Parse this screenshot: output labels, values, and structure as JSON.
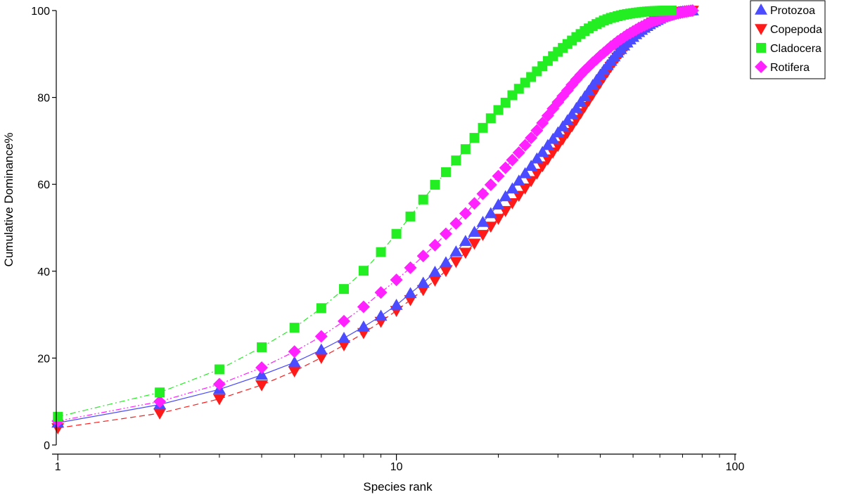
{
  "chart_data": {
    "type": "scatter",
    "xlabel": "Species rank",
    "ylabel": "Cumulative Dominance%",
    "xscale": "log",
    "xlim": [
      0.98,
      100
    ],
    "ylim": [
      0,
      100
    ],
    "xticks": [
      1,
      10,
      100
    ],
    "yticks": [
      0,
      20,
      40,
      60,
      80,
      100
    ],
    "grid": false,
    "legend_position": "top-right",
    "series": [
      {
        "name": "Protozoa",
        "color": "#4b4bff",
        "marker": "triangle-up",
        "line_style": "solid",
        "x": [
          1,
          2,
          3,
          4,
          5,
          6,
          7,
          8,
          9,
          10,
          11,
          12,
          13,
          14,
          15,
          16,
          17,
          18,
          19,
          20,
          21,
          22,
          23,
          24,
          25,
          26,
          27,
          28,
          29,
          30,
          31,
          32,
          33,
          34,
          35,
          36,
          37,
          38,
          39,
          40,
          41,
          42,
          43,
          44,
          45,
          46,
          47,
          48,
          49,
          50,
          51,
          52,
          53,
          54,
          55,
          56,
          57,
          58,
          59,
          60,
          61,
          62,
          63,
          64,
          65,
          66,
          67,
          68,
          69,
          70,
          71,
          72,
          73,
          74,
          75
        ],
        "y": [
          5.1,
          9.3,
          12.8,
          16.1,
          19.0,
          21.9,
          24.6,
          27.2,
          29.7,
          32.2,
          34.9,
          37.3,
          39.8,
          42.0,
          44.5,
          46.9,
          49.0,
          51.3,
          53.3,
          55.3,
          57.2,
          59.0,
          60.8,
          62.5,
          64.2,
          65.9,
          67.4,
          69.0,
          70.4,
          71.9,
          73.3,
          74.7,
          76.1,
          77.5,
          78.9,
          80.2,
          81.5,
          82.8,
          84.0,
          85.2,
          86.3,
          87.4,
          88.4,
          89.4,
          90.3,
          91.1,
          91.9,
          92.6,
          93.3,
          93.9,
          94.5,
          95.0,
          95.5,
          96.0,
          96.4,
          96.8,
          97.2,
          97.5,
          97.8,
          98.1,
          98.4,
          98.6,
          98.8,
          99.0,
          99.2,
          99.3,
          99.4,
          99.55,
          99.65,
          99.75,
          99.82,
          99.88,
          99.93,
          99.97,
          100
        ]
      },
      {
        "name": "Copepoda",
        "color": "#ff1a1a",
        "marker": "triangle-down",
        "line_style": "dashed",
        "x": [
          1,
          2,
          3,
          4,
          5,
          6,
          7,
          8,
          9,
          10,
          11,
          12,
          13,
          14,
          15,
          16,
          17,
          18,
          19,
          20,
          21,
          22,
          23,
          24,
          25,
          26,
          27,
          28,
          29,
          30,
          31,
          32,
          33,
          34,
          35,
          36,
          37,
          38,
          39,
          40,
          41,
          42,
          43,
          44,
          45,
          46,
          47,
          48,
          49,
          50,
          51,
          52,
          53,
          54,
          55,
          56,
          57,
          58,
          59,
          60,
          61,
          62,
          63,
          64,
          65,
          66,
          67,
          68,
          69,
          70,
          71,
          72,
          73,
          74,
          75
        ],
        "y": [
          3.9,
          7.3,
          10.6,
          13.8,
          17.0,
          20.1,
          23.0,
          25.8,
          28.4,
          30.9,
          33.4,
          35.7,
          37.9,
          40.1,
          42.2,
          44.3,
          46.4,
          48.4,
          50.3,
          52.1,
          53.9,
          55.7,
          57.4,
          59.1,
          60.8,
          62.5,
          64.2,
          65.8,
          67.4,
          68.9,
          70.4,
          71.9,
          73.4,
          74.9,
          76.4,
          77.9,
          79.3,
          80.7,
          82.1,
          83.4,
          84.7,
          85.9,
          87.1,
          88.2,
          89.2,
          90.2,
          91.1,
          92.0,
          92.8,
          93.6,
          94.3,
          94.9,
          95.5,
          96.0,
          96.5,
          96.9,
          97.3,
          97.7,
          98.0,
          98.3,
          98.5,
          98.7,
          98.9,
          99.1,
          99.3,
          99.4,
          99.5,
          99.6,
          99.7,
          99.78,
          99.85,
          99.9,
          99.94,
          99.97,
          100
        ]
      },
      {
        "name": "Cladocera",
        "color": "#22ee22",
        "marker": "square",
        "line_style": "dashdot",
        "x": [
          1,
          2,
          3,
          4,
          5,
          6,
          7,
          8,
          9,
          10,
          11,
          12,
          13,
          14,
          15,
          16,
          17,
          18,
          19,
          20,
          21,
          22,
          23,
          24,
          25,
          26,
          27,
          28,
          29,
          30,
          31,
          32,
          33,
          34,
          35,
          36,
          37,
          38,
          39,
          40,
          41,
          42,
          43,
          44,
          45,
          46,
          47,
          48,
          49,
          50,
          51,
          52,
          53,
          54,
          55,
          56,
          57,
          58,
          59,
          60,
          61,
          62,
          63,
          64,
          65
        ],
        "y": [
          6.5,
          12.1,
          17.4,
          22.5,
          27.0,
          31.5,
          35.9,
          40.1,
          44.4,
          48.6,
          52.6,
          56.5,
          59.9,
          62.8,
          65.5,
          68.1,
          70.7,
          73.0,
          75.2,
          77.1,
          78.8,
          80.5,
          82.0,
          83.4,
          84.7,
          86.0,
          87.2,
          88.4,
          89.5,
          90.5,
          91.4,
          92.3,
          93.1,
          93.9,
          94.6,
          95.3,
          95.9,
          96.4,
          96.9,
          97.3,
          97.7,
          98.0,
          98.3,
          98.5,
          98.7,
          98.9,
          99.05,
          99.2,
          99.3,
          99.4,
          99.5,
          99.58,
          99.65,
          99.72,
          99.78,
          99.83,
          99.87,
          99.9,
          99.93,
          99.95,
          99.97,
          99.98,
          99.99,
          100,
          100
        ]
      },
      {
        "name": "Rotifera",
        "color": "#ff22ff",
        "marker": "diamond",
        "line_style": "dashdotdot",
        "x": [
          1,
          2,
          3,
          4,
          5,
          6,
          7,
          8,
          9,
          10,
          11,
          12,
          13,
          14,
          15,
          16,
          17,
          18,
          19,
          20,
          21,
          22,
          23,
          24,
          25,
          26,
          27,
          28,
          29,
          30,
          31,
          32,
          33,
          34,
          35,
          36,
          37,
          38,
          39,
          40,
          41,
          42,
          43,
          44,
          45,
          46,
          47,
          48,
          49,
          50,
          51,
          52,
          53,
          54,
          55,
          56,
          57,
          58,
          59,
          60,
          61,
          62,
          63,
          64,
          65,
          66,
          67,
          68,
          69,
          70,
          71,
          72,
          73,
          74,
          75
        ],
        "y": [
          5.5,
          10.0,
          14.0,
          17.8,
          21.5,
          25.0,
          28.5,
          31.8,
          35.1,
          38.0,
          40.8,
          43.5,
          46.0,
          48.6,
          51.0,
          53.3,
          55.6,
          57.8,
          59.9,
          61.9,
          63.8,
          65.6,
          67.3,
          69.0,
          70.7,
          72.4,
          74.1,
          75.8,
          77.4,
          78.9,
          80.3,
          81.6,
          82.9,
          84.1,
          85.2,
          86.2,
          87.1,
          88.0,
          88.8,
          89.6,
          90.3,
          91.0,
          91.7,
          92.3,
          92.9,
          93.4,
          93.9,
          94.4,
          94.8,
          95.2,
          95.6,
          96.0,
          96.3,
          96.6,
          96.9,
          97.2,
          97.5,
          97.7,
          97.9,
          98.1,
          98.3,
          98.5,
          98.7,
          98.85,
          99.0,
          99.15,
          99.3,
          99.4,
          99.5,
          99.6,
          99.7,
          99.78,
          99.85,
          99.93,
          100
        ]
      }
    ]
  }
}
